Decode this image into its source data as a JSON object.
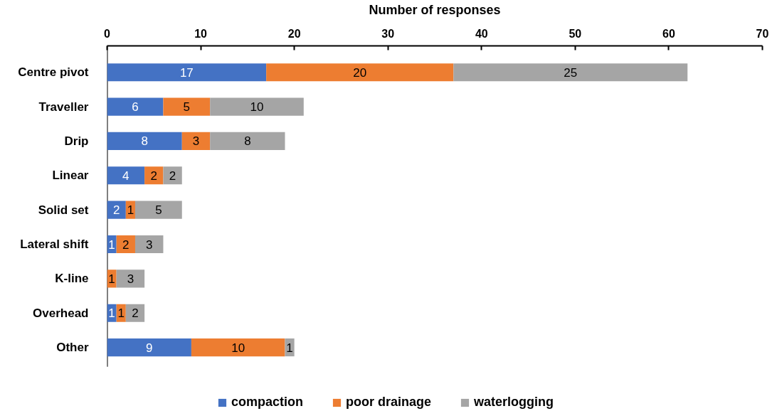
{
  "chart_data": {
    "type": "bar",
    "orientation": "horizontal",
    "stacked": true,
    "xlabel": "Number of responses",
    "categories": [
      "Centre pivot",
      "Traveller",
      "Drip",
      "Linear",
      "Solid set",
      "Lateral shift",
      "K-line",
      "Overhead",
      "Other"
    ],
    "xlim": [
      0,
      70
    ],
    "xticks": [
      0,
      10,
      20,
      30,
      40,
      50,
      60,
      70
    ],
    "grid": false,
    "legend": "bottom",
    "series": [
      {
        "name": "compaction",
        "color": "#4472c4",
        "values": [
          17,
          6,
          8,
          4,
          2,
          1,
          0,
          1,
          9
        ],
        "value_labels": [
          "17",
          "6",
          "8",
          "4",
          "2",
          "1",
          null,
          "1",
          "9"
        ]
      },
      {
        "name": "poor drainage",
        "color": "#ed7d31",
        "values": [
          20,
          5,
          3,
          2,
          1,
          2,
          1,
          1,
          10
        ],
        "value_labels": [
          "20",
          "5",
          "3",
          "2",
          "1",
          "2",
          "1",
          "1",
          "10"
        ]
      },
      {
        "name": "waterlogging",
        "color": "#a5a5a5",
        "values": [
          25,
          10,
          8,
          2,
          5,
          3,
          3,
          2,
          1
        ],
        "value_labels": [
          "25",
          "10",
          "8",
          "2",
          "5",
          "3",
          "3",
          "2",
          "1"
        ]
      }
    ]
  }
}
